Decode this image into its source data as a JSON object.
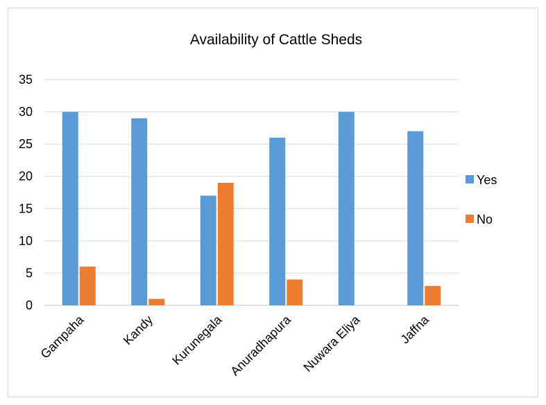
{
  "chart_data": {
    "type": "bar",
    "title": "Availability of Cattle Sheds",
    "xlabel": "",
    "ylabel": "",
    "categories": [
      "Gampaha",
      "Kandy",
      "Kurunegala",
      "Anuradhapura",
      "Nuwara Eliya",
      "Jaffna"
    ],
    "series": [
      {
        "name": "Yes",
        "values": [
          30,
          29,
          17,
          26,
          30,
          27
        ],
        "color": "#5b9bd5"
      },
      {
        "name": "No",
        "values": [
          6,
          1,
          19,
          4,
          0,
          3
        ],
        "color": "#ed7d31"
      }
    ],
    "ylim": [
      0,
      35
    ],
    "yticks": [
      0,
      5,
      10,
      15,
      20,
      25,
      30,
      35
    ],
    "grid": true,
    "legend_position": "right"
  }
}
